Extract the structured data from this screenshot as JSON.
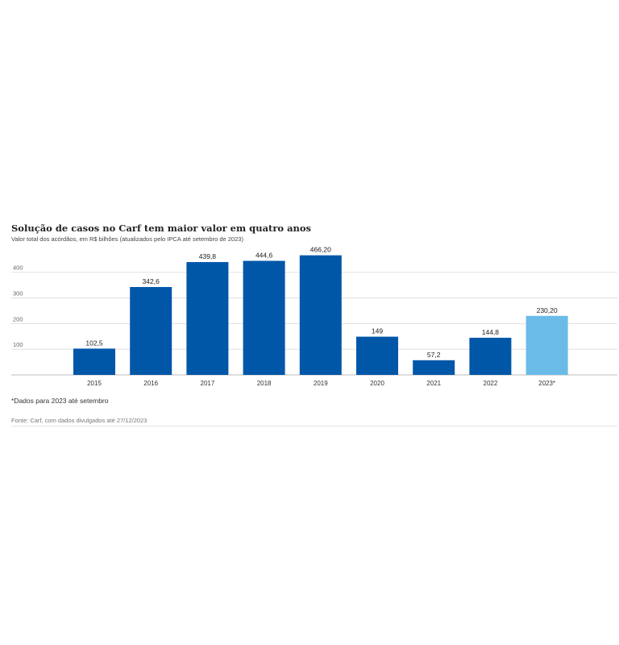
{
  "chart_data": {
    "type": "bar",
    "title": "Solução de casos no Carf tem maior valor em quatro anos",
    "subtitle": "Valor total dos acórdãos, em R$ bilhões (atualizados pelo IPCA até setembro de 2023)",
    "categories": [
      "2015",
      "2016",
      "2017",
      "2018",
      "2019",
      "2020",
      "2021",
      "2022",
      "2023*"
    ],
    "values": [
      102.5,
      342.6,
      439.8,
      444.6,
      466.2,
      149,
      57.2,
      144.8,
      230.2
    ],
    "value_labels": [
      "102,5",
      "342,6",
      "439,8",
      "444,6",
      "466,20",
      "149",
      "57,2",
      "144,8",
      "230,20"
    ],
    "highlight_index": 8,
    "yticks": [
      "100",
      "200",
      "300",
      "400"
    ],
    "ylim": [
      0,
      480
    ],
    "grid": true,
    "legend": "none",
    "colors": {
      "bar": "#0057a8",
      "highlight": "#6bbbe8",
      "grid": "#d9d9d9",
      "axis": "#bbbbbb"
    },
    "note": "*Dados para 2023 até setembro",
    "source": "Fonte: Carf, com dados divulgados até 27/12/2023"
  }
}
